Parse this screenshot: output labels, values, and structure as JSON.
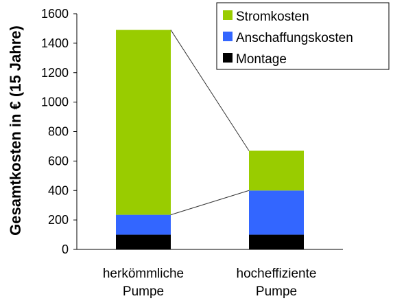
{
  "chart_data": {
    "type": "bar",
    "stacked": true,
    "categories": [
      [
        "herkömmliche",
        "Pumpe"
      ],
      [
        "hocheffiziente",
        "Pumpe"
      ]
    ],
    "series": [
      {
        "name": "Montage",
        "color": "#000000",
        "values": [
          100,
          100
        ]
      },
      {
        "name": "Anschaffungskosten",
        "color": "#3366ff",
        "values": [
          135,
          300
        ]
      },
      {
        "name": "Stromkosten",
        "color": "#99cc00",
        "values": [
          1255,
          270
        ]
      }
    ],
    "legend_order": [
      "Stromkosten",
      "Anschaffungskosten",
      "Montage"
    ],
    "legend_position": "top-right",
    "ylabel": "Gesamtkosten in € (15 Jahre)",
    "xlabel": "",
    "yticks": [
      0,
      200,
      400,
      600,
      800,
      1000,
      1200,
      1400,
      1600
    ],
    "ylim": [
      0,
      1600
    ],
    "grid": false,
    "connector_lines": true
  }
}
